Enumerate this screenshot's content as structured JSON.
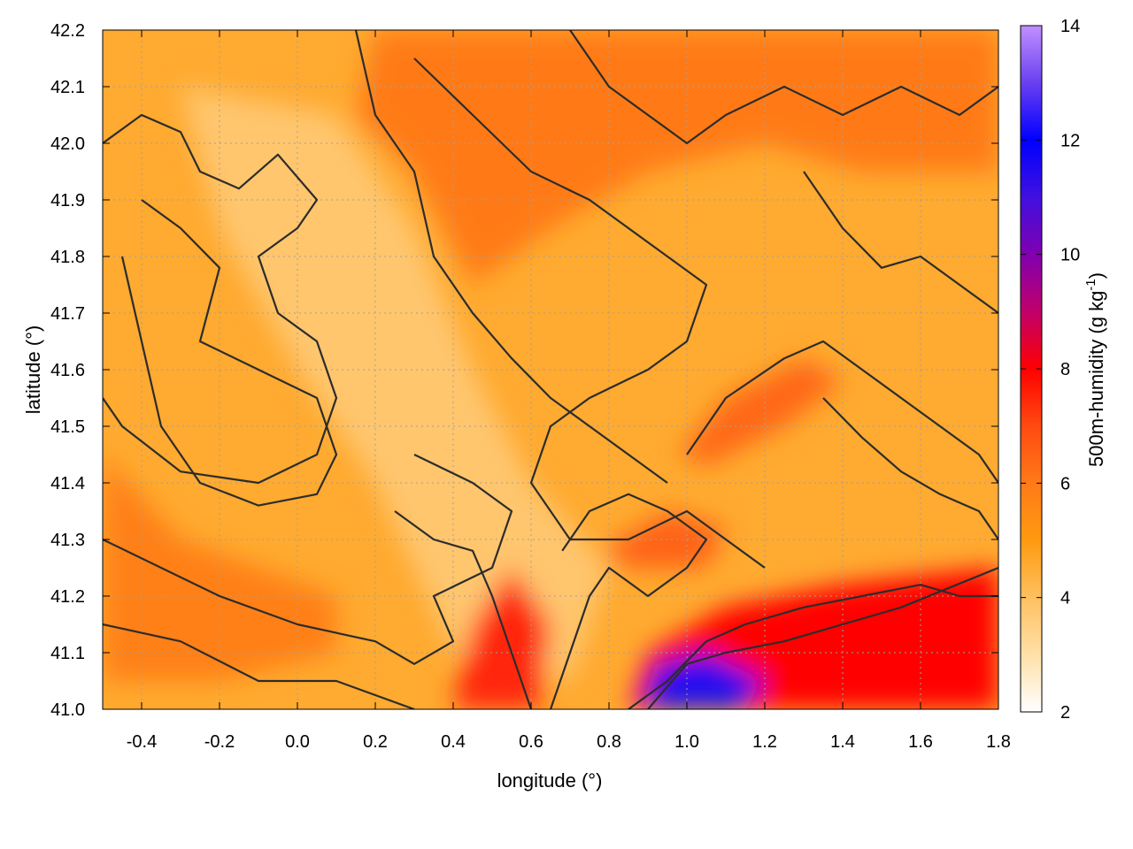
{
  "chart_data": {
    "type": "heatmap",
    "xlabel": "longitude (°)",
    "ylabel": "latitude (°)",
    "xlim": [
      -0.5,
      1.8
    ],
    "ylim": [
      41.0,
      42.2
    ],
    "x_ticks": [
      "-0.4",
      "-0.2",
      "0.0",
      "0.2",
      "0.4",
      "0.6",
      "0.8",
      "1.0",
      "1.2",
      "1.4",
      "1.6",
      "1.8"
    ],
    "y_ticks": [
      "41.0",
      "41.1",
      "41.2",
      "41.3",
      "41.4",
      "41.5",
      "41.6",
      "41.7",
      "41.8",
      "41.9",
      "42.0",
      "42.1",
      "42.2"
    ],
    "grid": true,
    "colorbar": {
      "label": "500m-humidity (g kg",
      "label_superscript": "-1",
      "label_suffix": ")",
      "range": [
        2,
        14
      ],
      "ticks": [
        "2",
        "4",
        "6",
        "8",
        "10",
        "12",
        "14"
      ],
      "stops": [
        {
          "value": 2,
          "color": "#ffffff"
        },
        {
          "value": 3,
          "color": "#ffe0a8"
        },
        {
          "value": 4,
          "color": "#ffc060"
        },
        {
          "value": 5,
          "color": "#ff9a10"
        },
        {
          "value": 6,
          "color": "#ff7a18"
        },
        {
          "value": 7,
          "color": "#ff4a10"
        },
        {
          "value": 8,
          "color": "#ff0000"
        },
        {
          "value": 9,
          "color": "#c0006a"
        },
        {
          "value": 10,
          "color": "#8000b0"
        },
        {
          "value": 11,
          "color": "#4010e0"
        },
        {
          "value": 12,
          "color": "#0000ff"
        },
        {
          "value": 13,
          "color": "#6a40f0"
        },
        {
          "value": 14,
          "color": "#c090ff"
        }
      ]
    },
    "field_regions": [
      {
        "name": "dry-central-band",
        "value": 3.8,
        "polygon": [
          [
            -0.3,
            42.1
          ],
          [
            0.1,
            42.05
          ],
          [
            0.3,
            41.85
          ],
          [
            0.45,
            41.6
          ],
          [
            0.6,
            41.4
          ],
          [
            0.8,
            41.25
          ],
          [
            0.7,
            41.05
          ],
          [
            0.4,
            41.1
          ],
          [
            0.2,
            41.4
          ],
          [
            0.0,
            41.6
          ],
          [
            -0.2,
            41.85
          ]
        ]
      },
      {
        "name": "moist-north",
        "value": 6.0,
        "polygon": [
          [
            0.2,
            42.2
          ],
          [
            1.8,
            42.2
          ],
          [
            1.8,
            41.95
          ],
          [
            1.45,
            41.95
          ],
          [
            1.2,
            42.0
          ],
          [
            0.9,
            41.95
          ],
          [
            0.65,
            41.85
          ],
          [
            0.45,
            41.75
          ],
          [
            0.3,
            41.95
          ],
          [
            0.15,
            42.05
          ]
        ]
      },
      {
        "name": "moist-southwest",
        "value": 5.8,
        "polygon": [
          [
            -0.5,
            41.45
          ],
          [
            -0.3,
            41.3
          ],
          [
            -0.1,
            41.25
          ],
          [
            0.1,
            41.2
          ],
          [
            0.1,
            41.1
          ],
          [
            -0.2,
            41.05
          ],
          [
            -0.5,
            41.05
          ]
        ]
      },
      {
        "name": "moist-ridge-east",
        "value": 6.4,
        "polygon": [
          [
            0.98,
            41.45
          ],
          [
            1.1,
            41.55
          ],
          [
            1.3,
            41.62
          ],
          [
            1.4,
            41.58
          ],
          [
            1.25,
            41.5
          ],
          [
            1.05,
            41.43
          ]
        ]
      },
      {
        "name": "moist-patch-center",
        "value": 6.5,
        "polygon": [
          [
            0.78,
            41.28
          ],
          [
            0.95,
            41.35
          ],
          [
            1.1,
            41.32
          ],
          [
            1.05,
            41.25
          ],
          [
            0.85,
            41.25
          ]
        ]
      },
      {
        "name": "wet-southeast",
        "value": 8.0,
        "polygon": [
          [
            0.85,
            41.0
          ],
          [
            0.9,
            41.1
          ],
          [
            1.1,
            41.18
          ],
          [
            1.4,
            41.22
          ],
          [
            1.8,
            41.25
          ],
          [
            1.8,
            41.0
          ]
        ]
      },
      {
        "name": "very-wet-core",
        "value": 11.5,
        "polygon": [
          [
            0.88,
            41.0
          ],
          [
            0.92,
            41.08
          ],
          [
            1.05,
            41.1
          ],
          [
            1.2,
            41.05
          ],
          [
            1.15,
            41.0
          ]
        ]
      },
      {
        "name": "wet-south-center",
        "value": 7.5,
        "polygon": [
          [
            0.4,
            41.0
          ],
          [
            0.45,
            41.15
          ],
          [
            0.55,
            41.25
          ],
          [
            0.65,
            41.15
          ],
          [
            0.62,
            41.0
          ]
        ]
      }
    ],
    "contours": [
      [
        [
          -0.5,
          42.0
        ],
        [
          -0.4,
          42.05
        ],
        [
          -0.3,
          42.02
        ],
        [
          -0.25,
          41.95
        ],
        [
          -0.15,
          41.92
        ],
        [
          -0.05,
          41.98
        ],
        [
          0.05,
          41.9
        ],
        [
          0.0,
          41.85
        ],
        [
          -0.1,
          41.8
        ],
        [
          -0.05,
          41.7
        ],
        [
          0.05,
          41.65
        ],
        [
          0.1,
          41.55
        ],
        [
          0.05,
          41.45
        ],
        [
          -0.1,
          41.4
        ],
        [
          -0.3,
          41.42
        ],
        [
          -0.45,
          41.5
        ],
        [
          -0.5,
          41.55
        ]
      ],
      [
        [
          -0.4,
          41.9
        ],
        [
          -0.3,
          41.85
        ],
        [
          -0.2,
          41.78
        ],
        [
          -0.25,
          41.65
        ],
        [
          -0.1,
          41.6
        ],
        [
          0.05,
          41.55
        ],
        [
          0.1,
          41.45
        ],
        [
          0.05,
          41.38
        ],
        [
          -0.1,
          41.36
        ],
        [
          -0.25,
          41.4
        ],
        [
          -0.35,
          41.5
        ],
        [
          -0.4,
          41.65
        ],
        [
          -0.45,
          41.8
        ]
      ],
      [
        [
          -0.5,
          41.3
        ],
        [
          -0.35,
          41.25
        ],
        [
          -0.2,
          41.2
        ],
        [
          0.0,
          41.15
        ],
        [
          0.2,
          41.12
        ],
        [
          0.3,
          41.08
        ],
        [
          0.4,
          41.12
        ],
        [
          0.35,
          41.2
        ],
        [
          0.5,
          41.25
        ],
        [
          0.55,
          41.35
        ],
        [
          0.45,
          41.4
        ],
        [
          0.3,
          41.45
        ]
      ],
      [
        [
          -0.5,
          41.15
        ],
        [
          -0.3,
          41.12
        ],
        [
          -0.1,
          41.05
        ],
        [
          0.1,
          41.05
        ],
        [
          0.3,
          41.0
        ]
      ],
      [
        [
          0.15,
          42.2
        ],
        [
          0.2,
          42.05
        ],
        [
          0.3,
          41.95
        ],
        [
          0.35,
          41.8
        ],
        [
          0.45,
          41.7
        ],
        [
          0.55,
          41.62
        ],
        [
          0.65,
          41.55
        ],
        [
          0.75,
          41.5
        ],
        [
          0.85,
          41.45
        ],
        [
          0.95,
          41.4
        ]
      ],
      [
        [
          0.3,
          42.15
        ],
        [
          0.45,
          42.05
        ],
        [
          0.6,
          41.95
        ],
        [
          0.75,
          41.9
        ],
        [
          0.85,
          41.85
        ],
        [
          0.95,
          41.8
        ],
        [
          1.05,
          41.75
        ],
        [
          1.0,
          41.65
        ],
        [
          0.9,
          41.6
        ],
        [
          0.75,
          41.55
        ],
        [
          0.65,
          41.5
        ],
        [
          0.6,
          41.4
        ],
        [
          0.7,
          41.3
        ],
        [
          0.85,
          41.3
        ],
        [
          1.0,
          41.35
        ],
        [
          1.1,
          41.3
        ],
        [
          1.2,
          41.25
        ]
      ],
      [
        [
          0.7,
          42.2
        ],
        [
          0.8,
          42.1
        ],
        [
          0.9,
          42.05
        ],
        [
          1.0,
          42.0
        ],
        [
          1.1,
          42.05
        ],
        [
          1.25,
          42.1
        ],
        [
          1.4,
          42.05
        ],
        [
          1.55,
          42.1
        ],
        [
          1.7,
          42.05
        ],
        [
          1.8,
          42.1
        ]
      ],
      [
        [
          1.0,
          41.45
        ],
        [
          1.1,
          41.55
        ],
        [
          1.25,
          41.62
        ],
        [
          1.35,
          41.65
        ],
        [
          1.45,
          41.6
        ],
        [
          1.55,
          41.55
        ],
        [
          1.65,
          41.5
        ],
        [
          1.75,
          41.45
        ],
        [
          1.8,
          41.4
        ]
      ],
      [
        [
          0.85,
          41.0
        ],
        [
          0.95,
          41.05
        ],
        [
          1.05,
          41.12
        ],
        [
          1.15,
          41.15
        ],
        [
          1.3,
          41.18
        ],
        [
          1.45,
          41.2
        ],
        [
          1.6,
          41.22
        ],
        [
          1.7,
          41.2
        ],
        [
          1.8,
          41.2
        ]
      ],
      [
        [
          0.9,
          41.0
        ],
        [
          1.0,
          41.08
        ],
        [
          1.1,
          41.1
        ],
        [
          1.25,
          41.12
        ],
        [
          1.4,
          41.15
        ],
        [
          1.55,
          41.18
        ],
        [
          1.8,
          41.25
        ]
      ],
      [
        [
          0.25,
          41.35
        ],
        [
          0.35,
          41.3
        ],
        [
          0.45,
          41.28
        ],
        [
          0.5,
          41.2
        ],
        [
          0.55,
          41.1
        ],
        [
          0.6,
          41.0
        ]
      ],
      [
        [
          0.65,
          41.0
        ],
        [
          0.7,
          41.1
        ],
        [
          0.75,
          41.2
        ],
        [
          0.8,
          41.25
        ],
        [
          0.9,
          41.2
        ],
        [
          1.0,
          41.25
        ],
        [
          1.05,
          41.3
        ],
        [
          0.95,
          41.35
        ],
        [
          0.85,
          41.38
        ],
        [
          0.75,
          41.35
        ],
        [
          0.68,
          41.28
        ]
      ],
      [
        [
          1.3,
          41.95
        ],
        [
          1.4,
          41.85
        ],
        [
          1.5,
          41.78
        ],
        [
          1.6,
          41.8
        ],
        [
          1.7,
          41.75
        ],
        [
          1.8,
          41.7
        ]
      ],
      [
        [
          1.35,
          41.55
        ],
        [
          1.45,
          41.48
        ],
        [
          1.55,
          41.42
        ],
        [
          1.65,
          41.38
        ],
        [
          1.75,
          41.35
        ],
        [
          1.8,
          41.3
        ]
      ]
    ]
  }
}
